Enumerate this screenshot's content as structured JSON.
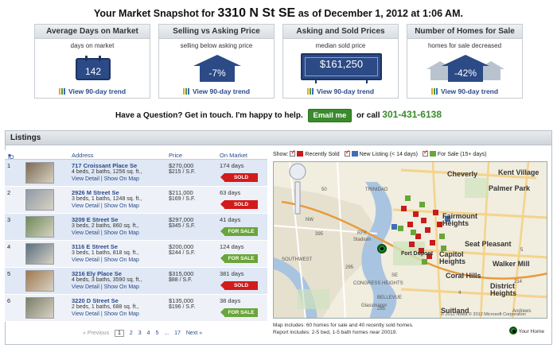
{
  "header": {
    "prefix": "Your Market Snapshot for",
    "address": "3310 N St SE",
    "suffix": "as of December 1, 2012 at 1:06 AM."
  },
  "cards": [
    {
      "title": "Average Days on Market",
      "subtitle": "days on market",
      "value": "142",
      "trend": "View 90-day trend"
    },
    {
      "title": "Selling vs Asking Price",
      "subtitle": "selling below asking price",
      "value": "-7%",
      "trend": "View 90-day trend"
    },
    {
      "title": "Asking and Sold Prices",
      "subtitle": "median sold price",
      "value": "$161,250",
      "trend": "View 90-day trend"
    },
    {
      "title": "Number of Homes for Sale",
      "subtitle": "homes for sale decreased",
      "value": "-42%",
      "trend": "View 90-day trend"
    }
  ],
  "contact": {
    "text": "Have a Question? Get in touch. I'm happy to help.",
    "email_button": "Email me",
    "or_call": "or call",
    "phone": "301-431-6138"
  },
  "listings": {
    "title": "Listings",
    "columns": {
      "id": "ID",
      "address": "Address",
      "price": "Price",
      "on_market": "On Market"
    },
    "rows": [
      {
        "id": "1",
        "address": "717 Croissant Place Se",
        "specs": "4 beds, 2 baths, 1256 sq. ft.,",
        "price": "$270,000",
        "psf": "$215 / S.F.",
        "days": "174 days",
        "status": "SOLD",
        "status_type": "sold",
        "links": "View Detail | Show On Map"
      },
      {
        "id": "2",
        "address": "2926 M Street Se",
        "specs": "3 beds, 1 baths, 1248 sq. ft.,",
        "price": "$211,000",
        "psf": "$169 / S.F.",
        "days": "63 days",
        "status": "SOLD",
        "status_type": "sold",
        "links": "View Detail | Show On Map"
      },
      {
        "id": "3",
        "address": "3209 E Street Se",
        "specs": "3 beds, 2 baths, 860 sq. ft.,",
        "price": "$297,000",
        "psf": "$345 / S.F.",
        "days": "41 days",
        "status": "FOR SALE",
        "status_type": "sale",
        "links": "View Detail | Show On Map"
      },
      {
        "id": "4",
        "address": "3116 E Street Se",
        "specs": "3 beds, 1 baths, 818 sq. ft.,",
        "price": "$200,000",
        "psf": "$244 / S.F.",
        "days": "124 days",
        "status": "FOR SALE",
        "status_type": "sale",
        "links": "View Detail | Show On Map"
      },
      {
        "id": "5",
        "address": "3216 Ely Place Se",
        "specs": "4 beds, 3 baths, 3590 sq. ft.,",
        "price": "$315,000",
        "psf": "$88 / S.F.",
        "days": "381 days",
        "status": "SOLD",
        "status_type": "sold",
        "links": "View Detail | Show On Map"
      },
      {
        "id": "6",
        "address": "3220 D Street Se",
        "specs": "2 beds, 1 baths, 688 sq. ft.,",
        "price": "$135,000",
        "psf": "$196 / S.F.",
        "days": "38 days",
        "status": "FOR SALE",
        "status_type": "sale",
        "links": "View Detail | Show On Map"
      }
    ],
    "pager": {
      "prev": "« Previous",
      "pages": [
        "1",
        "2",
        "3",
        "4",
        "5",
        "...",
        "17"
      ],
      "next": "Next »"
    }
  },
  "map": {
    "show_label": "Show:",
    "filters": [
      "Recently Sold",
      "New Listing (< 14 days)",
      "For Sale (15+ days)"
    ],
    "labels": [
      "Cheverly",
      "Kent Village",
      "Palmer Park",
      "Fairmount Heights",
      "Seat Pleasant",
      "Capitol Heights",
      "Walker Mill",
      "Coral Hills",
      "District Heights",
      "Suitland",
      "Glassmanor",
      "Fort Dupont",
      "Stadium",
      "TRINIDAD",
      "RFK",
      "NW",
      "SE",
      "SOUTHWEST",
      "CONGRESS HEIGHTS",
      "BELLEVUE",
      "Andrews",
      "395",
      "295",
      "4",
      "214",
      "295",
      "50",
      "5"
    ],
    "copyright": "© 2012 Nokia   © 2012 Microsoft Corporation",
    "foot_line1": "Map includes: 60 homes for sale and 40 recently sold homes.",
    "foot_line2": "Report includes: 2-5 bed, 1-5 bath homes near 20019.",
    "your_home": "Your Home"
  }
}
